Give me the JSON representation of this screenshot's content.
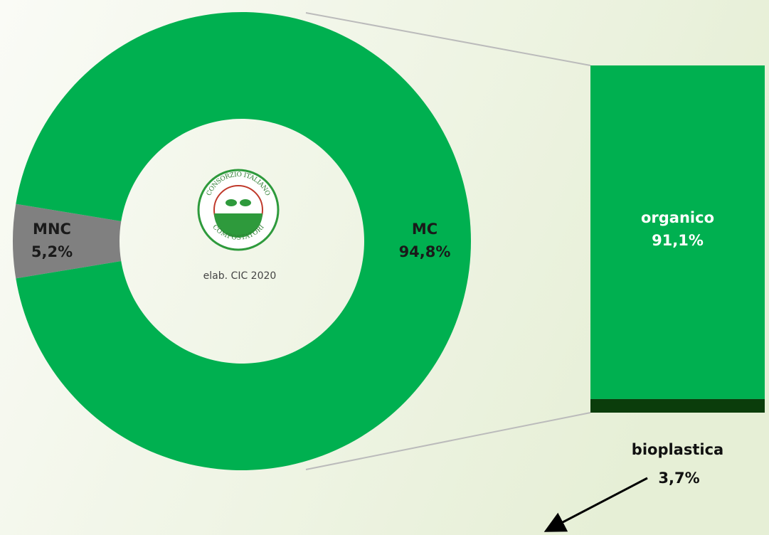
{
  "chart_data": [
    {
      "type": "pie",
      "categories": [
        "MNC",
        "MC"
      ],
      "values": [
        5.2,
        94.8
      ],
      "value_labels": [
        "5,2%",
        "94,8%"
      ],
      "colors": [
        "#808080",
        "#00b050"
      ],
      "donut": true,
      "annotation": "elab. CIC 2020",
      "logo_text": [
        "CONSORZIO ITALIANO",
        "COMPOSTATORI"
      ]
    },
    {
      "type": "stacked_bar",
      "categories": [
        "organico",
        "bioplastica"
      ],
      "values": [
        91.1,
        3.7
      ],
      "value_labels": [
        "91,1%",
        "3,7%"
      ],
      "colors": [
        "#00b050",
        "#0b3d0b"
      ]
    }
  ]
}
